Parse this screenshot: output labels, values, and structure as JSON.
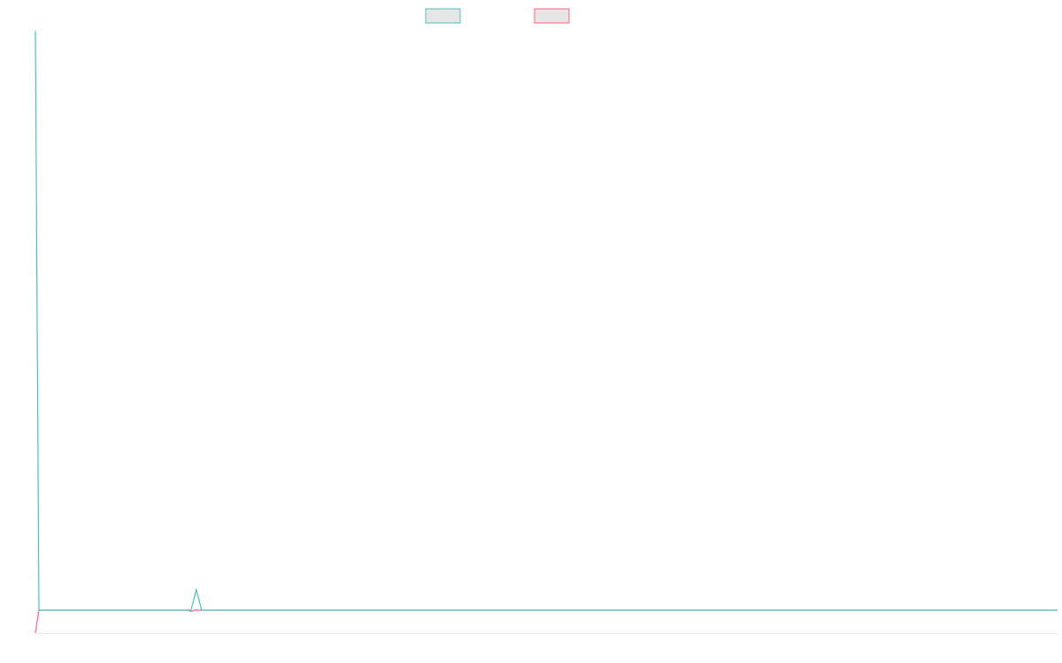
{
  "chart_data": {
    "type": "line",
    "xlim": [
      0,
      289
    ],
    "ylim": [
      0,
      100
    ],
    "series": [
      {
        "color": "#4bc0c0",
        "x": [
          0,
          1,
          44,
          45.5,
          47,
          289
        ],
        "values": [
          100,
          3.8,
          3.8,
          7.2,
          3.8,
          3.8
        ]
      },
      {
        "color": "#ff6384",
        "x": [
          0,
          1,
          43,
          44,
          45,
          289
        ],
        "values": [
          0,
          3.8,
          3.8,
          3.6,
          3.8,
          3.8
        ]
      }
    ]
  }
}
